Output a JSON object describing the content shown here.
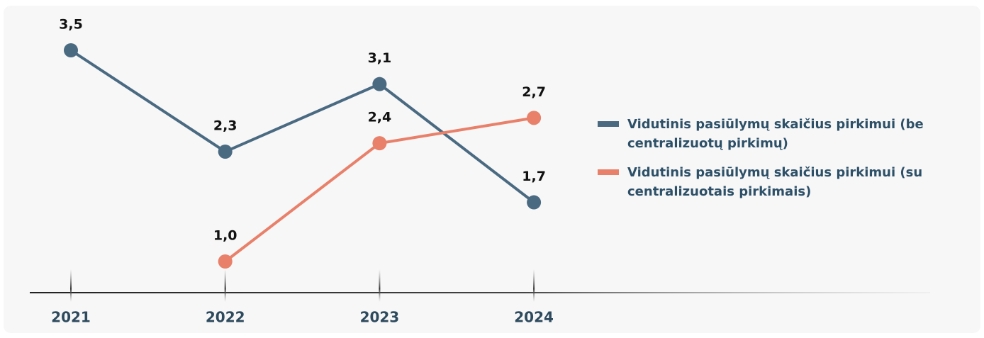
{
  "chart_data": {
    "type": "line",
    "categories": [
      "2021",
      "2022",
      "2023",
      "2024"
    ],
    "series": [
      {
        "name": "Vidutinis pasiūlymų skaičius pirkimui (be centralizuotų pirkimų)",
        "color": "#4a6a82",
        "values": [
          3.5,
          2.3,
          3.1,
          1.7
        ],
        "value_labels": [
          "3,5",
          "2,3",
          "3,1",
          "1,7"
        ]
      },
      {
        "name": "Vidutinis pasiūlymų skaičius pirkimui (su centralizuotais pirkimais)",
        "color": "#e8806a",
        "values": [
          null,
          1.0,
          2.4,
          2.7
        ],
        "value_labels": [
          null,
          "1,0",
          "2,4",
          "2,7"
        ]
      }
    ],
    "legend": "right"
  }
}
